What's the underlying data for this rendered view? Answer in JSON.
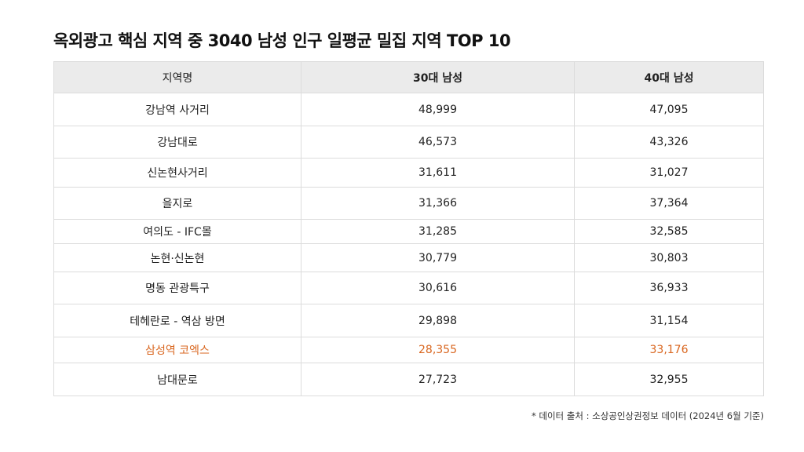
{
  "header": {
    "title": "옥외광고 핵심 지역 중 3040 남성 인구 일평균 밀집 지역 TOP 10"
  },
  "table": {
    "columns": [
      "지역명",
      "30대 남성",
      "40대 남성"
    ],
    "rows": [
      [
        "강남역 사거리",
        "48,999",
        "47,095"
      ],
      [
        "강남대로",
        "46,573",
        "43,326"
      ],
      [
        "신논현사거리",
        "31,611",
        "31,027"
      ],
      [
        "을지로",
        "31,366",
        "37,364"
      ],
      [
        "여의도 - IFC몰",
        "31,285",
        "32,585"
      ],
      [
        "논현·신논현",
        "30,779",
        "30,803"
      ],
      [
        "명동 관광특구",
        "30,616",
        "36,933"
      ],
      [
        "테헤란로 - 역삼 방면",
        "29,898",
        "31,154"
      ],
      [
        "삼성역 코엑스",
        "28,355",
        "33,176"
      ],
      [
        "남대문로",
        "27,723",
        "32,955"
      ]
    ],
    "highlight": {
      "row": 8,
      "color": "#d9661f"
    }
  },
  "footnote": "* 데이터 출처 :  소상공인상권정보 데이터 (2024년 6월 기준)"
}
